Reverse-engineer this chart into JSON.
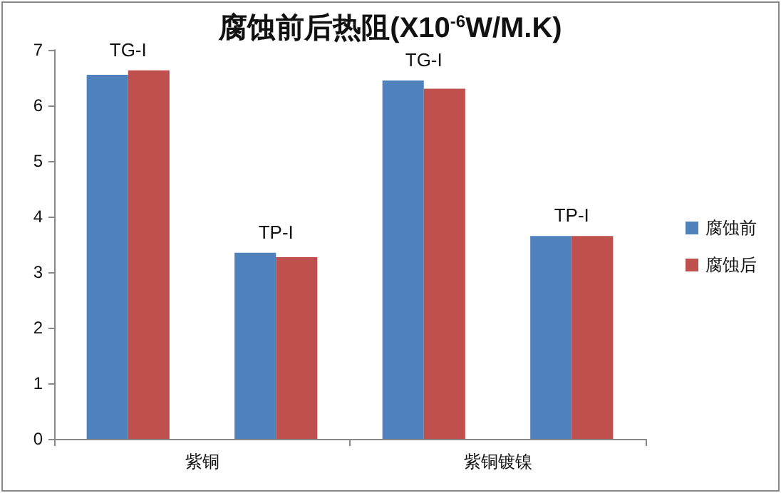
{
  "chart_data": {
    "type": "bar",
    "title": "腐蚀前后热阻(X10$^{-6}$W/M.K)",
    "categories": [
      "TG-I",
      "TP-I",
      "TG-I",
      "TP-I"
    ],
    "series": [
      {
        "name": "腐蚀前",
        "color": "#4f81bd",
        "values": [
          6.55,
          3.35,
          6.45,
          3.65
        ]
      },
      {
        "name": "腐蚀后",
        "color": "#c0504d",
        "values": [
          6.63,
          3.27,
          6.3,
          3.65
        ]
      }
    ],
    "annotations": [
      "紫铜",
      "紫铜镀镍"
    ],
    "ylim": [
      0,
      7
    ],
    "yticks": [
      0,
      1,
      2,
      3,
      4,
      5,
      6,
      7
    ],
    "legend": "right"
  }
}
